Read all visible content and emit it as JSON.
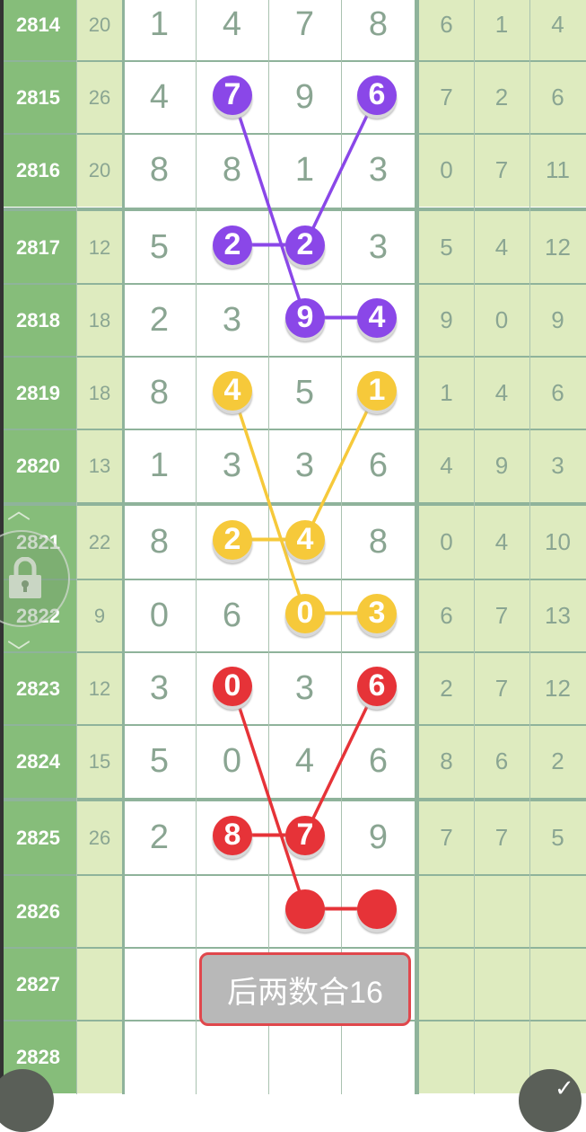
{
  "colors": {
    "purple": "#8a47e8",
    "yellow": "#f6c93a",
    "red": "#e63338",
    "period_bg": "#86bd7a",
    "side_bg": "#deebbf"
  },
  "rows": [
    {
      "period": "2814",
      "sum": "20",
      "digits": [
        "1",
        "4",
        "7",
        "8"
      ],
      "right": [
        "6",
        "1",
        "4"
      ]
    },
    {
      "period": "2815",
      "sum": "26",
      "digits": [
        "4",
        "7",
        "9",
        "6"
      ],
      "right": [
        "7",
        "2",
        "6"
      ]
    },
    {
      "period": "2816",
      "sum": "20",
      "digits": [
        "8",
        "8",
        "1",
        "3"
      ],
      "right": [
        "0",
        "7",
        "11"
      ]
    },
    {
      "period": "2817",
      "sum": "12",
      "digits": [
        "5",
        "2",
        "2",
        "3"
      ],
      "right": [
        "5",
        "4",
        "12"
      ]
    },
    {
      "period": "2818",
      "sum": "18",
      "digits": [
        "2",
        "3",
        "9",
        "4"
      ],
      "right": [
        "9",
        "0",
        "9"
      ]
    },
    {
      "period": "2819",
      "sum": "18",
      "digits": [
        "8",
        "4",
        "5",
        "1"
      ],
      "right": [
        "1",
        "4",
        "6"
      ]
    },
    {
      "period": "2820",
      "sum": "13",
      "digits": [
        "1",
        "3",
        "3",
        "6"
      ],
      "right": [
        "4",
        "9",
        "3"
      ]
    },
    {
      "period": "2821",
      "sum": "22",
      "digits": [
        "8",
        "2",
        "4",
        "8"
      ],
      "right": [
        "0",
        "4",
        "10"
      ]
    },
    {
      "period": "2822",
      "sum": "9",
      "digits": [
        "0",
        "6",
        "0",
        "3"
      ],
      "right": [
        "6",
        "7",
        "13"
      ]
    },
    {
      "period": "2823",
      "sum": "12",
      "digits": [
        "3",
        "0",
        "3",
        "6"
      ],
      "right": [
        "2",
        "7",
        "12"
      ]
    },
    {
      "period": "2824",
      "sum": "15",
      "digits": [
        "5",
        "0",
        "4",
        "6"
      ],
      "right": [
        "8",
        "6",
        "2"
      ]
    },
    {
      "period": "2825",
      "sum": "26",
      "digits": [
        "2",
        "8",
        "7",
        "9"
      ],
      "right": [
        "7",
        "7",
        "5"
      ]
    },
    {
      "period": "2826",
      "sum": "",
      "digits": [
        "",
        "",
        "",
        ""
      ],
      "right": [
        "",
        "",
        ""
      ]
    },
    {
      "period": "2827",
      "sum": "",
      "digits": [
        "",
        "",
        "",
        ""
      ],
      "right": [
        "",
        "",
        ""
      ]
    },
    {
      "period": "2828",
      "sum": "",
      "digits": [
        "",
        "",
        "",
        ""
      ],
      "right": [
        "",
        "",
        ""
      ]
    }
  ],
  "highlights": [
    {
      "color": "purple",
      "balls": [
        [
          1,
          1
        ],
        [
          1,
          3
        ],
        [
          3,
          1
        ],
        [
          3,
          2
        ],
        [
          4,
          2
        ],
        [
          4,
          3
        ]
      ],
      "links": [
        [
          0,
          4
        ],
        [
          1,
          3
        ],
        [
          2,
          3
        ],
        [
          4,
          5
        ]
      ]
    },
    {
      "color": "yellow",
      "balls": [
        [
          5,
          1
        ],
        [
          5,
          3
        ],
        [
          7,
          1
        ],
        [
          7,
          2
        ],
        [
          8,
          2
        ],
        [
          8,
          3
        ]
      ],
      "links": [
        [
          0,
          4
        ],
        [
          1,
          3
        ],
        [
          2,
          3
        ],
        [
          4,
          5
        ]
      ]
    },
    {
      "color": "red",
      "balls": [
        [
          9,
          1
        ],
        [
          9,
          3
        ],
        [
          11,
          1
        ],
        [
          11,
          2
        ],
        [
          12,
          2
        ],
        [
          12,
          3
        ]
      ],
      "links": [
        [
          0,
          4
        ],
        [
          1,
          3
        ],
        [
          2,
          3
        ],
        [
          4,
          5
        ]
      ]
    }
  ],
  "tooltip": "后两数合16",
  "icons": {
    "lock": "lock-icon",
    "up": "chevron-up-icon",
    "down": "chevron-down-icon"
  }
}
